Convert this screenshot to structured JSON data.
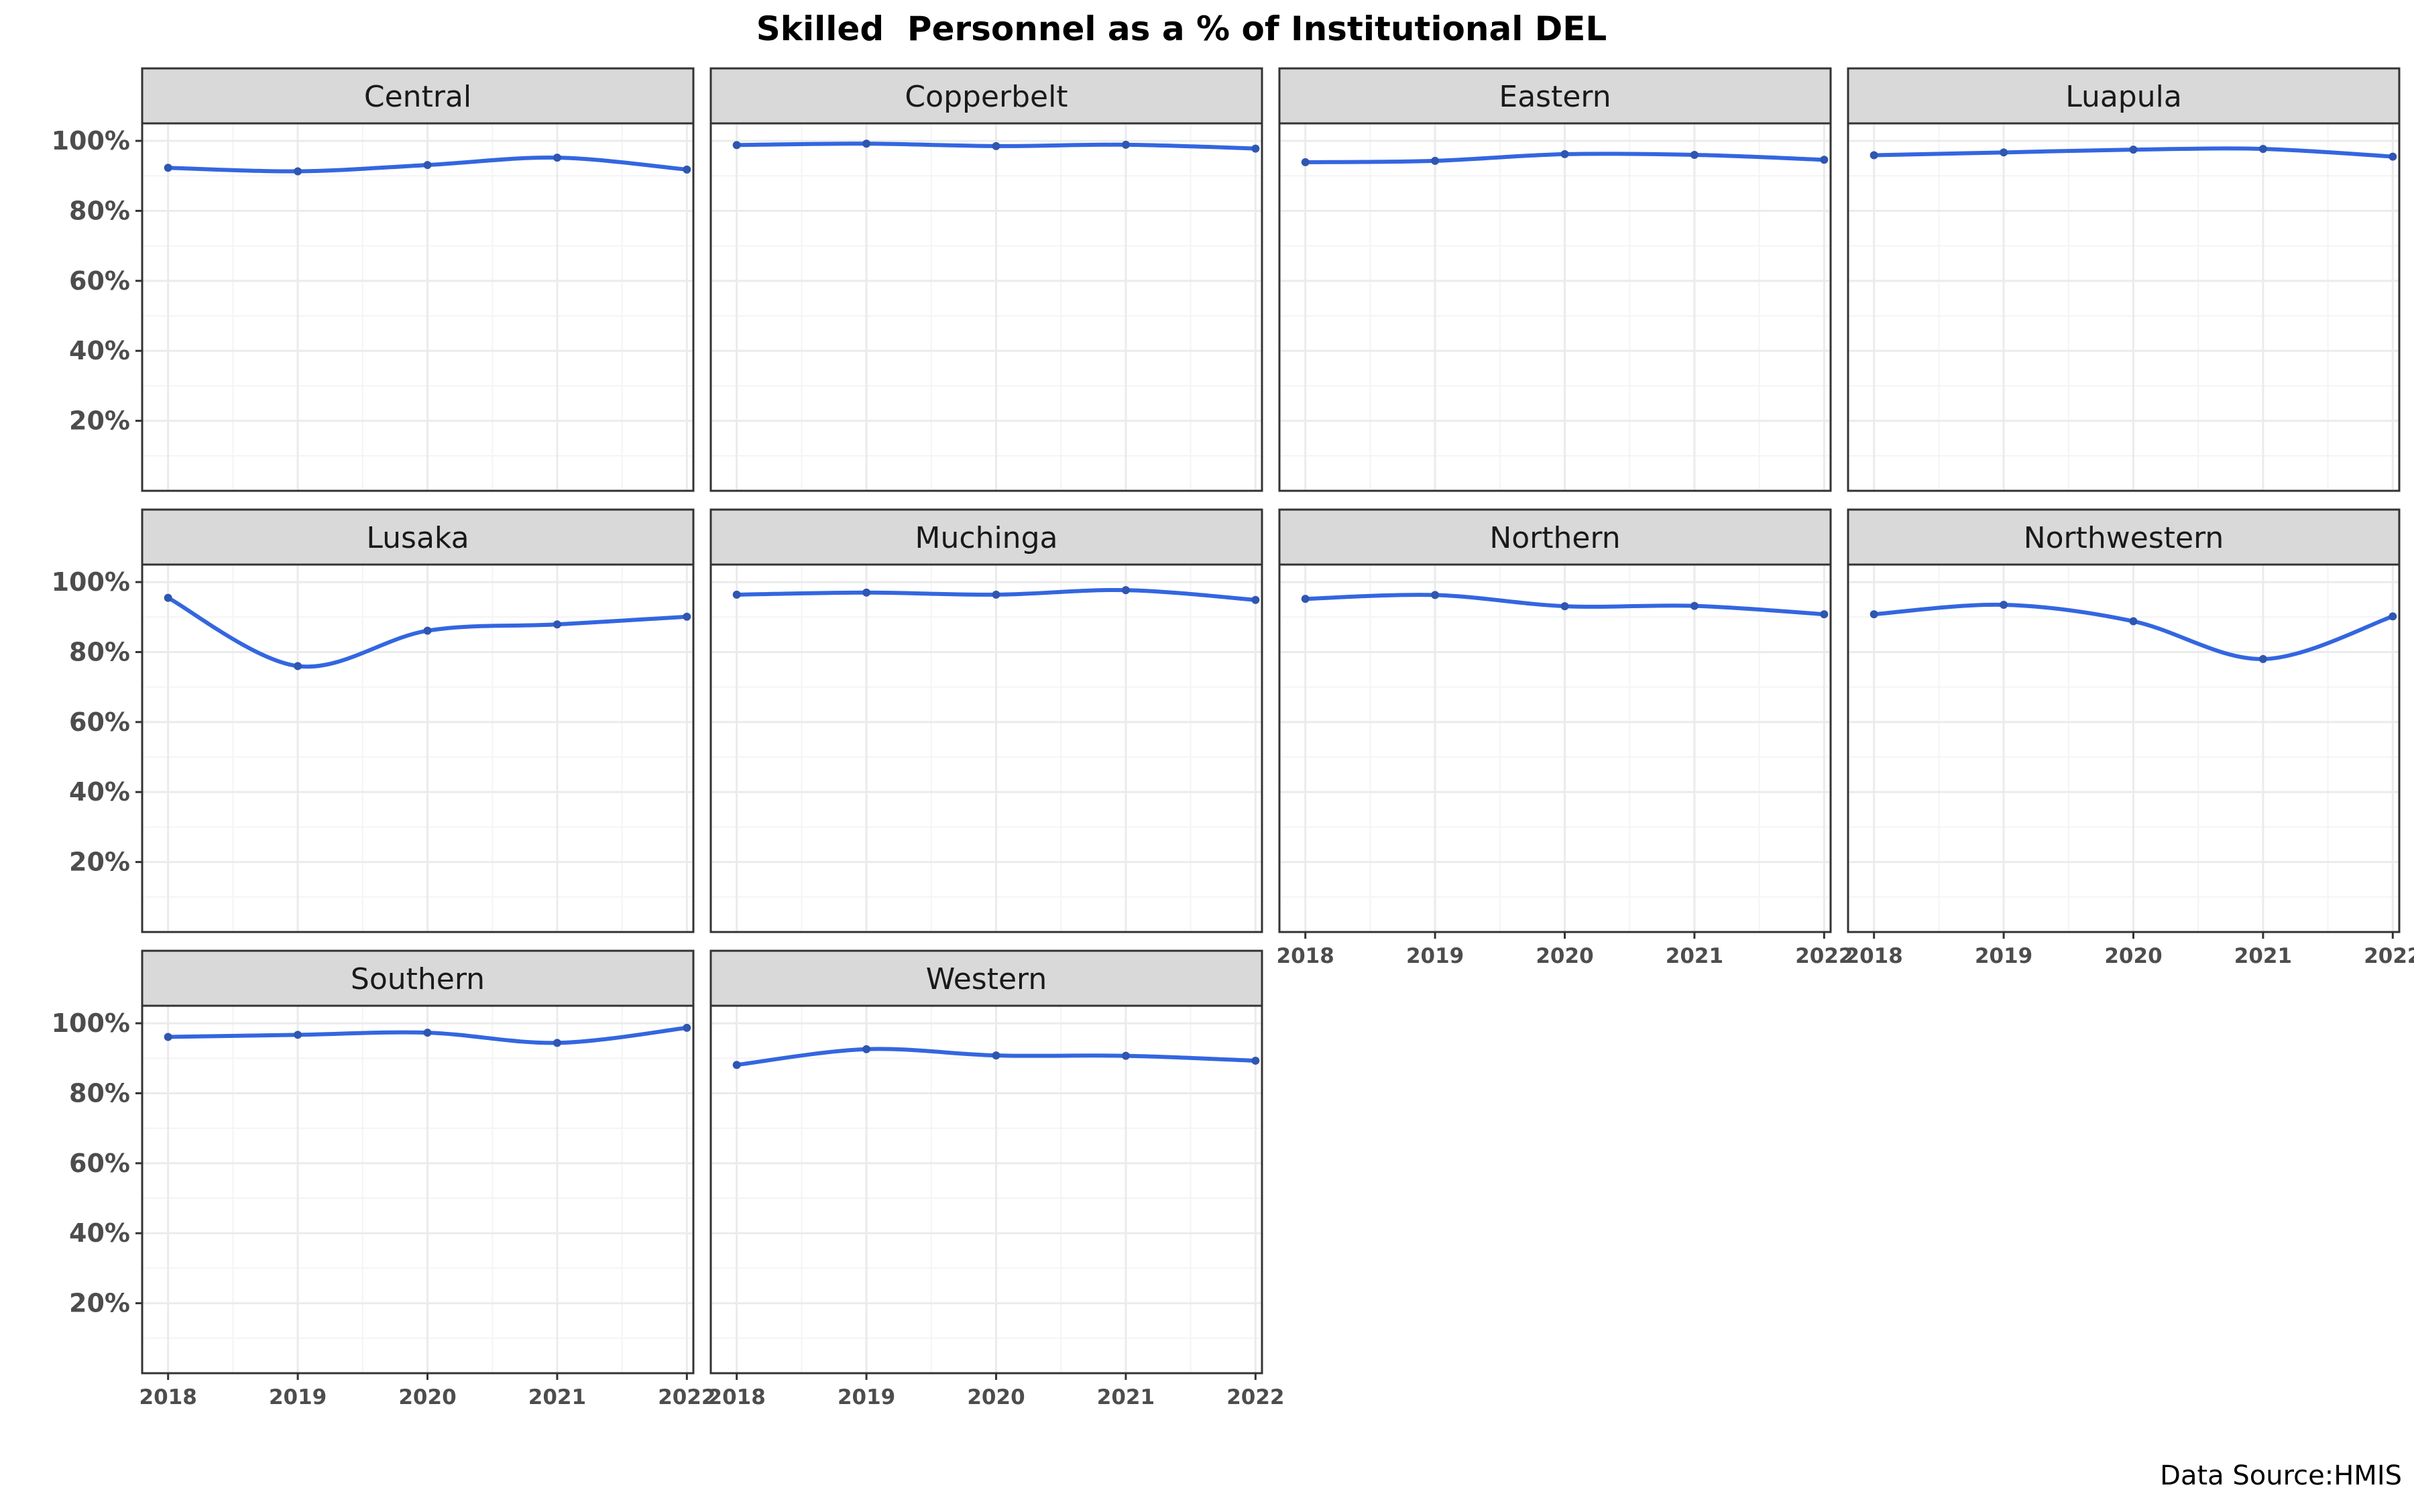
{
  "chart_data": {
    "type": "line",
    "title": "Skilled  Personnel as a % of Institutional DEL",
    "caption": "Data Source:HMIS",
    "x": [
      2018,
      2019,
      2020,
      2021,
      2022
    ],
    "x_tick_labels": [
      "2018",
      "2019",
      "2020",
      "2021",
      "2022"
    ],
    "y_tick_values": [
      20,
      40,
      60,
      80,
      100
    ],
    "y_tick_labels": [
      "20%",
      "40%",
      "60%",
      "80%",
      "100%"
    ],
    "ylim": [
      0,
      105
    ],
    "xlim": [
      2017.8,
      2022.05
    ],
    "grid": true,
    "facets": [
      {
        "label": "Central",
        "values": [
          92.3,
          91.3,
          93.1,
          95.2,
          91.8
        ]
      },
      {
        "label": "Copperbelt",
        "values": [
          98.8,
          99.2,
          98.5,
          98.9,
          97.8
        ]
      },
      {
        "label": "Eastern",
        "values": [
          93.9,
          94.3,
          96.2,
          96.0,
          94.6
        ]
      },
      {
        "label": "Luapula",
        "values": [
          95.9,
          96.7,
          97.5,
          97.7,
          95.5
        ]
      },
      {
        "label": "Lusaka",
        "values": [
          95.5,
          76.0,
          86.1,
          87.9,
          90.1
        ]
      },
      {
        "label": "Muchinga",
        "values": [
          96.4,
          97.0,
          96.4,
          97.7,
          94.9
        ]
      },
      {
        "label": "Northern",
        "values": [
          95.2,
          96.3,
          93.1,
          93.2,
          90.8
        ]
      },
      {
        "label": "Northwestern",
        "values": [
          90.8,
          93.5,
          88.8,
          78.0,
          90.2
        ]
      },
      {
        "label": "Southern",
        "values": [
          96.1,
          96.7,
          97.3,
          94.4,
          98.7
        ]
      },
      {
        "label": "Western",
        "values": [
          88.1,
          92.6,
          90.8,
          90.7,
          89.3
        ]
      }
    ],
    "colors": {
      "line": "#3366e0",
      "point": "#2f56b0",
      "strip_fill": "#d9d9d9",
      "grid_major": "#ebebeb",
      "grid_minor": "#f4f4f4",
      "panel_border": "#333333"
    }
  }
}
